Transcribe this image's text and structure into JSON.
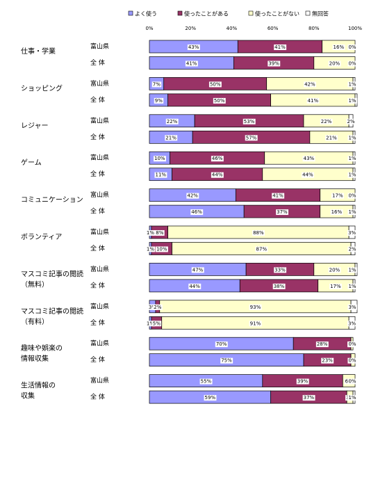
{
  "chart_data": {
    "type": "stacked-bar-horizontal",
    "groups": [
      [
        "仕事・学業"
      ],
      [
        "ショッピング"
      ],
      [
        "レジャー"
      ],
      [
        "ゲーム"
      ],
      [
        "コミュニケーション"
      ],
      [
        "ボランティア"
      ],
      [
        "マスコミ記事の閲読",
        "（無料）"
      ],
      [
        "マスコミ記事の閲読",
        "（有料）"
      ],
      [
        "趣味や娯楽の",
        "情報収集"
      ],
      [
        "生活情報の",
        "収集"
      ]
    ],
    "categories": [
      "富山県",
      "全 体",
      "富山県",
      "全 体",
      "富山県",
      "全 体",
      "富山県",
      "全 体",
      "富山県",
      "全 体",
      "富山県",
      "全 体",
      "富山県",
      "全 体",
      "富山県",
      "全 体",
      "富山県",
      "全 体",
      "富山県",
      "全 体"
    ],
    "series": [
      {
        "name": "よく使う",
        "color": "#9999ff",
        "values": [
          43,
          41,
          7,
          9,
          22,
          21,
          10,
          11,
          42,
          46,
          1,
          1,
          47,
          44,
          3,
          1,
          70,
          75,
          55,
          59
        ],
        "value_labels": [
          "43%",
          "41%",
          "7%",
          "9%",
          "22%",
          "21%",
          "10%",
          "11%",
          "42%",
          "46%",
          "1%",
          "1%",
          "47%",
          "44%",
          "3%",
          "1%",
          "70%",
          "75%",
          "55%",
          "59%"
        ]
      },
      {
        "name": "使ったことがある",
        "color": "#993366",
        "values": [
          41,
          39,
          50,
          50,
          53,
          57,
          46,
          44,
          41,
          37,
          8,
          10,
          33,
          38,
          2,
          5,
          28,
          23,
          39,
          37
        ],
        "value_labels": [
          "41%",
          "39%",
          "50%",
          "50%",
          "53%",
          "57%",
          "46%",
          "44%",
          "41%",
          "37%",
          "8%",
          "10%",
          "33%",
          "38%",
          "2%",
          "5%",
          "28%",
          "23%",
          "39%",
          "37%"
        ]
      },
      {
        "name": "使ったことがない",
        "color": "#ffffcc",
        "values": [
          16,
          20,
          42,
          41,
          22,
          21,
          43,
          44,
          17,
          16,
          88,
          87,
          20,
          17,
          93,
          91,
          1,
          2,
          6,
          3
        ],
        "value_labels": [
          "16%",
          "20%",
          "42%",
          "41%",
          "22%",
          "21%",
          "43%",
          "44%",
          "17%",
          "16%",
          "88%",
          "87%",
          "20%",
          "17%",
          "93%",
          "91%",
          "1%",
          null,
          "6%",
          "3%"
        ]
      },
      {
        "name": "無回答",
        "color": "#ffffff",
        "values": [
          0,
          0,
          1,
          1,
          2,
          1,
          1,
          1,
          0,
          1,
          3,
          2,
          1,
          1,
          3,
          3,
          0,
          0,
          0,
          1
        ],
        "value_labels": [
          "0%",
          "0%",
          "1%",
          "1%",
          "2%",
          "1%",
          "1%",
          "1%",
          "0%",
          "1%",
          "3%",
          "2%",
          "1%",
          "1%",
          "3%",
          "3%",
          "0%",
          "0%",
          "0%",
          "1%"
        ]
      }
    ],
    "xlim": [
      0,
      100
    ],
    "xticks": [
      {
        "value": 0,
        "label": "0%"
      },
      {
        "value": 20,
        "label": "20%"
      },
      {
        "value": 40,
        "label": "40%"
      },
      {
        "value": 60,
        "label": "60%"
      },
      {
        "value": 80,
        "label": "80%"
      },
      {
        "value": 100,
        "label": "100%"
      }
    ]
  }
}
